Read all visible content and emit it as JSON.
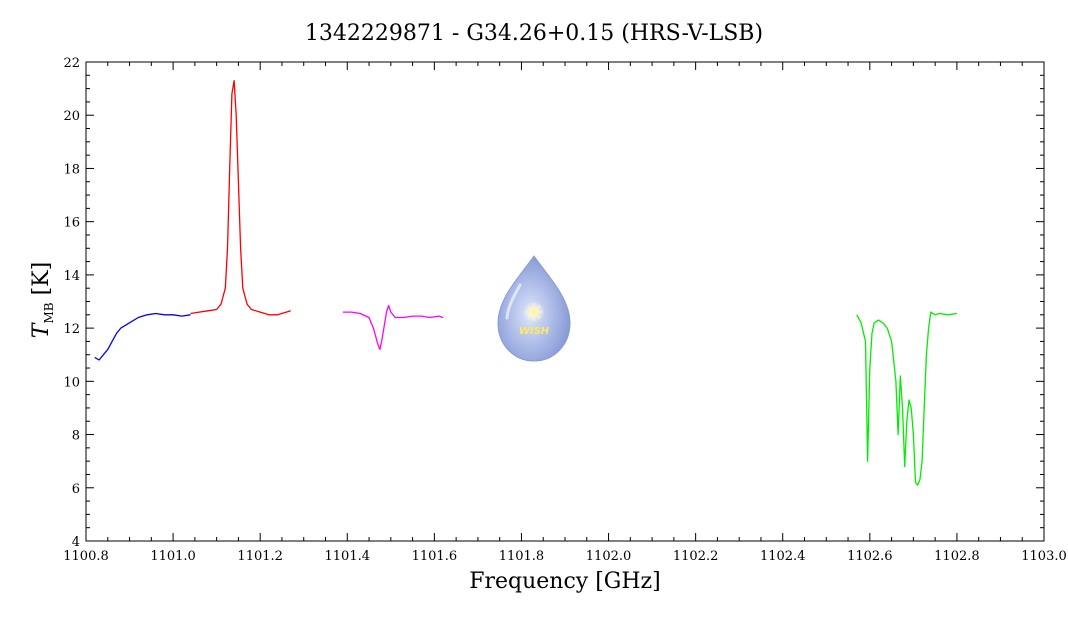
{
  "chart_data": {
    "type": "line",
    "title": "1342229871 - G34.26+0.15 (HRS-V-LSB)",
    "xlabel": "Frequency [GHz]",
    "ylabel_main": "T",
    "ylabel_sub": "MB",
    "ylabel_unit": "[K]",
    "xlim": [
      1100.8,
      1103.0
    ],
    "ylim": [
      4,
      22
    ],
    "x_ticks": [
      "1100.8",
      "1101.0",
      "1101.2",
      "1101.4",
      "1101.6",
      "1101.8",
      "1102.0",
      "1102.2",
      "1102.4",
      "1102.6",
      "1102.8",
      "1103.0"
    ],
    "y_ticks": [
      "4",
      "6",
      "8",
      "10",
      "12",
      "14",
      "16",
      "18",
      "20",
      "22"
    ],
    "grid": false,
    "series": [
      {
        "color": "#0000ff",
        "x": [
          1100.82,
          1100.83,
          1100.84,
          1100.85,
          1100.86,
          1100.87,
          1100.88,
          1100.9,
          1100.92,
          1100.94,
          1100.96,
          1100.98,
          1101.0,
          1101.02,
          1101.04
        ],
        "y": [
          10.9,
          10.8,
          11.0,
          11.2,
          11.5,
          11.8,
          12.0,
          12.2,
          12.4,
          12.5,
          12.55,
          12.5,
          12.5,
          12.45,
          12.5
        ]
      },
      {
        "color": "#ff0000",
        "x": [
          1101.04,
          1101.06,
          1101.08,
          1101.1,
          1101.11,
          1101.12,
          1101.125,
          1101.13,
          1101.135,
          1101.14,
          1101.145,
          1101.15,
          1101.155,
          1101.16,
          1101.17,
          1101.18,
          1101.2,
          1101.22,
          1101.24,
          1101.26,
          1101.27
        ],
        "y": [
          12.55,
          12.6,
          12.65,
          12.7,
          12.9,
          13.5,
          15.0,
          18.0,
          20.8,
          21.3,
          20.0,
          17.5,
          15.0,
          13.5,
          12.9,
          12.7,
          12.6,
          12.5,
          12.5,
          12.6,
          12.65
        ]
      },
      {
        "color": "#ff00ff",
        "x": [
          1101.39,
          1101.41,
          1101.43,
          1101.45,
          1101.46,
          1101.47,
          1101.475,
          1101.48,
          1101.49,
          1101.495,
          1101.5,
          1101.51,
          1101.53,
          1101.55,
          1101.57,
          1101.59,
          1101.61,
          1101.62
        ],
        "y": [
          12.6,
          12.6,
          12.55,
          12.4,
          12.0,
          11.4,
          11.2,
          11.6,
          12.6,
          12.85,
          12.6,
          12.4,
          12.4,
          12.45,
          12.45,
          12.4,
          12.45,
          12.4
        ]
      },
      {
        "color": "#00ee00",
        "x": [
          1102.57,
          1102.58,
          1102.59,
          1102.595,
          1102.6,
          1102.605,
          1102.61,
          1102.62,
          1102.63,
          1102.64,
          1102.65,
          1102.66,
          1102.665,
          1102.67,
          1102.675,
          1102.68,
          1102.685,
          1102.69,
          1102.695,
          1102.7,
          1102.705,
          1102.71,
          1102.715,
          1102.72,
          1102.725,
          1102.73,
          1102.735,
          1102.74,
          1102.75,
          1102.76,
          1102.78,
          1102.8
        ],
        "y": [
          12.5,
          12.2,
          11.5,
          7.0,
          10.5,
          11.8,
          12.2,
          12.3,
          12.2,
          12.0,
          11.5,
          10.0,
          8.0,
          10.2,
          9.0,
          6.8,
          8.5,
          9.3,
          9.0,
          8.0,
          6.2,
          6.1,
          6.3,
          7.0,
          9.0,
          11.0,
          12.0,
          12.6,
          12.5,
          12.55,
          12.5,
          12.55
        ]
      }
    ],
    "logo": {
      "text": "WISH"
    }
  }
}
